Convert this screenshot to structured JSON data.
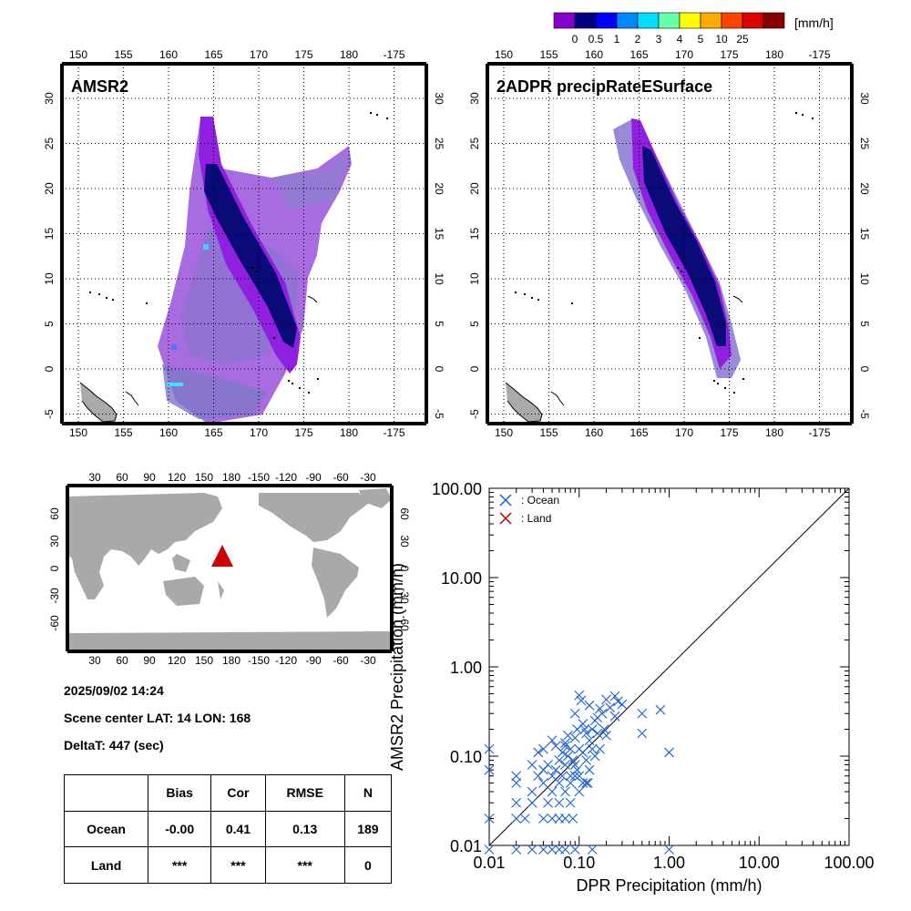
{
  "colorbar": {
    "unit": "[mm/h]",
    "colors": [
      "#8800cc",
      "#000080",
      "#0000ff",
      "#0088ff",
      "#00ddff",
      "#66ffaa",
      "#ffff00",
      "#ffaa00",
      "#ff4400",
      "#dd0000",
      "#880000"
    ],
    "labels": [
      "0",
      "0.5",
      "1",
      "2",
      "3",
      "4",
      "5",
      "10",
      "25"
    ]
  },
  "maps": [
    {
      "title": "AMSR2"
    },
    {
      "title": "2ADPR precipRateESurface"
    }
  ],
  "map_axes": {
    "lon_ticks": [
      "150",
      "155",
      "160",
      "165",
      "170",
      "175",
      "180",
      "-175"
    ],
    "lat_ticks": [
      "30",
      "25",
      "20",
      "15",
      "10",
      "5",
      "0",
      "-5"
    ]
  },
  "globe": {
    "lon_ticks": [
      "30",
      "60",
      "90",
      "120",
      "150",
      "180",
      "-150",
      "-120",
      "-90",
      "-60",
      "-30"
    ],
    "lat_ticks_left": [
      "60",
      "30",
      "0",
      "-30",
      "-60"
    ],
    "lat_ticks_right": [
      "60",
      "30",
      "0",
      "-30",
      "-60"
    ],
    "marker_color": "#cc0000",
    "land_color": "#a9a9a9"
  },
  "info": {
    "datetime": "2025/09/02 14:24",
    "scene_center": "Scene center LAT: 14   LON: 168",
    "deltat": "DeltaT:  447 (sec)"
  },
  "stats": {
    "headers": [
      "",
      "Bias",
      "Cor",
      "RMSE",
      "N"
    ],
    "rows": [
      [
        "Ocean",
        "-0.00",
        "0.41",
        "0.13",
        "189"
      ],
      [
        "Land",
        "***",
        "***",
        "***",
        "0"
      ]
    ]
  },
  "chart_data": {
    "type": "scatter",
    "xlabel": "DPR Precipitation (mm/h)",
    "ylabel": "AMSR2 Precipitation (mm/h)",
    "xscale": "log",
    "yscale": "log",
    "xlim": [
      0.01,
      100
    ],
    "ylim": [
      0.01,
      100
    ],
    "tick_labels": [
      "0.01",
      "0.10",
      "1.00",
      "10.00",
      "100.00"
    ],
    "legend_placement": "top-left",
    "series": [
      {
        "name": ": Ocean",
        "color": "#1a5fd6",
        "marker": "x",
        "points": [
          [
            0.01,
            0.12
          ],
          [
            0.01,
            0.07
          ],
          [
            0.01,
            0.02
          ],
          [
            0.01,
            0.009
          ],
          [
            0.02,
            0.06
          ],
          [
            0.02,
            0.05
          ],
          [
            0.02,
            0.03
          ],
          [
            0.02,
            0.02
          ],
          [
            0.02,
            0.009
          ],
          [
            0.025,
            0.02
          ],
          [
            0.03,
            0.08
          ],
          [
            0.03,
            0.04
          ],
          [
            0.03,
            0.03
          ],
          [
            0.03,
            0.009
          ],
          [
            0.035,
            0.11
          ],
          [
            0.035,
            0.06
          ],
          [
            0.04,
            0.12
          ],
          [
            0.04,
            0.07
          ],
          [
            0.04,
            0.05
          ],
          [
            0.04,
            0.02
          ],
          [
            0.04,
            0.009
          ],
          [
            0.045,
            0.08
          ],
          [
            0.045,
            0.03
          ],
          [
            0.05,
            0.15
          ],
          [
            0.05,
            0.06
          ],
          [
            0.05,
            0.04
          ],
          [
            0.05,
            0.02
          ],
          [
            0.05,
            0.009
          ],
          [
            0.055,
            0.13
          ],
          [
            0.055,
            0.07
          ],
          [
            0.06,
            0.09
          ],
          [
            0.06,
            0.05
          ],
          [
            0.06,
            0.03
          ],
          [
            0.06,
            0.02
          ],
          [
            0.06,
            0.009
          ],
          [
            0.065,
            0.11
          ],
          [
            0.065,
            0.06
          ],
          [
            0.07,
            0.14
          ],
          [
            0.07,
            0.08
          ],
          [
            0.07,
            0.04
          ],
          [
            0.07,
            0.02
          ],
          [
            0.07,
            0.009
          ],
          [
            0.075,
            0.17
          ],
          [
            0.075,
            0.1
          ],
          [
            0.08,
            0.12
          ],
          [
            0.08,
            0.06
          ],
          [
            0.08,
            0.05
          ],
          [
            0.08,
            0.03
          ],
          [
            0.085,
            0.09
          ],
          [
            0.085,
            0.02
          ],
          [
            0.09,
            0.3
          ],
          [
            0.09,
            0.16
          ],
          [
            0.09,
            0.08
          ],
          [
            0.09,
            0.009
          ],
          [
            0.095,
            0.2
          ],
          [
            0.095,
            0.07
          ],
          [
            0.1,
            0.48
          ],
          [
            0.1,
            0.12
          ],
          [
            0.1,
            0.06
          ],
          [
            0.1,
            0.04
          ],
          [
            0.105,
            0.42
          ],
          [
            0.11,
            0.11
          ],
          [
            0.11,
            0.05
          ],
          [
            0.115,
            0.2
          ],
          [
            0.12,
            0.18
          ],
          [
            0.12,
            0.09
          ],
          [
            0.125,
            0.05
          ],
          [
            0.13,
            0.37
          ],
          [
            0.13,
            0.15
          ],
          [
            0.13,
            0.07
          ],
          [
            0.14,
            0.2
          ],
          [
            0.14,
            0.12
          ],
          [
            0.14,
            0.009
          ],
          [
            0.15,
            0.25
          ],
          [
            0.15,
            0.1
          ],
          [
            0.16,
            0.18
          ],
          [
            0.17,
            0.34
          ],
          [
            0.17,
            0.12
          ],
          [
            0.18,
            0.3
          ],
          [
            0.19,
            0.2
          ],
          [
            0.2,
            0.43
          ],
          [
            0.2,
            0.17
          ],
          [
            0.22,
            0.35
          ],
          [
            0.25,
            0.28
          ],
          [
            0.25,
            0.47
          ],
          [
            0.27,
            0.41
          ],
          [
            0.3,
            0.38
          ],
          [
            0.5,
            0.3
          ],
          [
            0.5,
            0.18
          ],
          [
            0.8,
            0.33
          ],
          [
            1.0,
            0.11
          ],
          [
            1.0,
            0.009
          ],
          [
            0.12,
            0.05
          ],
          [
            0.09,
            0.06
          ],
          [
            0.07,
            0.13
          ],
          [
            0.11,
            0.23
          ],
          [
            0.16,
            0.27
          ]
        ]
      },
      {
        "name": ": Land",
        "color": "#bb0000",
        "marker": "x",
        "points": []
      }
    ]
  }
}
